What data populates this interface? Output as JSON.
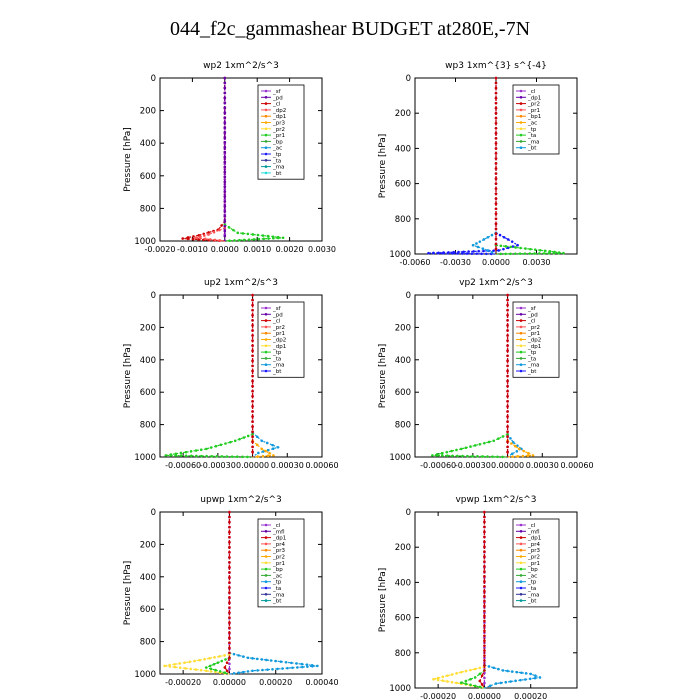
{
  "page": {
    "title": "044_f2c_gammashear  BUDGET at280E,-7N"
  },
  "chart_data": [
    {
      "type": "line",
      "title": "wp2   1xm^2/s^3",
      "ylabel": "Pressure  [hPa]",
      "xlim": [
        -0.002,
        0.003
      ],
      "ylim": [
        1000,
        0
      ],
      "xticks": [
        -0.002,
        -0.001,
        0.0,
        0.001,
        0.002,
        0.003
      ],
      "xtick_labels": [
        "-0.0020",
        "-0.0010",
        "0.0000",
        "0.0010",
        "0.0020",
        "0.0030"
      ],
      "yticks": [
        0,
        200,
        400,
        600,
        800,
        1000
      ],
      "legend": [
        "_sf",
        "_pd",
        "_cl",
        "_dp2",
        "_dp1",
        "_pr3",
        "_pr2",
        "_pr1",
        "_bp",
        "_ac",
        "_tp",
        "_ta",
        "_ma",
        "_bt"
      ],
      "series": [
        {
          "name": "_cl",
          "color": "#9933cc",
          "points": [
            [
              0.0,
              0
            ],
            [
              0.0,
              900
            ],
            [
              0.0,
              960
            ],
            [
              0.0,
              1000
            ]
          ]
        },
        {
          "name": "_pr1",
          "color": "#22cc22",
          "points": [
            [
              0.0,
              900
            ],
            [
              0.0004,
              950
            ],
            [
              0.0018,
              980
            ],
            [
              0.0,
              1000
            ]
          ]
        },
        {
          "name": "_dp1",
          "color": "#cc0000",
          "points": [
            [
              0.0,
              0
            ],
            [
              0.0,
              880
            ],
            [
              -0.0002,
              930
            ],
            [
              -0.0008,
              965
            ],
            [
              -0.0013,
              985
            ],
            [
              0.0,
              1000
            ]
          ]
        },
        {
          "name": "_pr3",
          "color": "#ff5555",
          "points": [
            [
              0.0,
              920
            ],
            [
              -0.0005,
              960
            ],
            [
              -0.0009,
              980
            ],
            [
              0.0,
              1000
            ]
          ]
        },
        {
          "name": "_pd",
          "color": "#6600aa",
          "points": [
            [
              0.0,
              0
            ],
            [
              0.0,
              1000
            ]
          ]
        }
      ]
    },
    {
      "type": "line",
      "title": "wp3   1xm^{3} s^{-4}",
      "ylabel": "Pressure  [hPa]",
      "xlim": [
        -0.006,
        0.006
      ],
      "ylim": [
        1000,
        0
      ],
      "xticks": [
        -0.006,
        -0.003,
        0.0,
        0.003
      ],
      "xtick_labels": [
        "-0.0060",
        "-0.0030",
        "0.0000",
        "0.0030"
      ],
      "yticks": [
        0,
        200,
        400,
        600,
        800,
        1000
      ],
      "legend": [
        "_cl",
        "_dp1",
        "_pr2",
        "_pr1",
        "_bp1",
        "_ac",
        "_tp",
        "_ta",
        "_ma",
        "_bt"
      ],
      "series": [
        {
          "name": "_cl",
          "color": "#9933cc",
          "points": [
            [
              0.0,
              0
            ],
            [
              0.0,
              1000
            ]
          ]
        },
        {
          "name": "_ta",
          "color": "#1a1aff",
          "points": [
            [
              0.0,
              880
            ],
            [
              0.0012,
              930
            ],
            [
              0.0016,
              950
            ],
            [
              0.0002,
              980
            ],
            [
              -0.005,
              995
            ],
            [
              0.0,
              1000
            ]
          ]
        },
        {
          "name": "_tp",
          "color": "#1199dd",
          "points": [
            [
              0.0,
              880
            ],
            [
              -0.0012,
              930
            ],
            [
              -0.0017,
              950
            ],
            [
              -0.0006,
              980
            ],
            [
              0.0,
              1000
            ]
          ]
        },
        {
          "name": "_ac",
          "color": "#22cc22",
          "points": [
            [
              0.0,
              950
            ],
            [
              0.004,
              985
            ],
            [
              0.005,
              995
            ],
            [
              0.0,
              1000
            ]
          ]
        },
        {
          "name": "_dp1",
          "color": "#cc0000",
          "points": [
            [
              0.0,
              0
            ],
            [
              0.0,
              1000
            ]
          ]
        }
      ]
    },
    {
      "type": "line",
      "title": "up2   1xm^2/s^3",
      "ylabel": "Pressure  [hPa]",
      "xlim": [
        -0.0008,
        0.0006
      ],
      "ylim": [
        1000,
        0
      ],
      "xticks": [
        -0.0006,
        -0.0003,
        0.0,
        0.0003,
        0.0006
      ],
      "xtick_labels": [
        "-0.00060",
        "-0.00030",
        "0.00000",
        "0.00030",
        "0.00060"
      ],
      "yticks": [
        0,
        200,
        400,
        600,
        800,
        1000
      ],
      "legend": [
        "_sf",
        "_pd",
        "_cl",
        "_pr2",
        "_pr1",
        "_dp2",
        "_dp1",
        "_tp",
        "_ta",
        "_ma",
        "_bt"
      ],
      "series": [
        {
          "name": "_cl",
          "color": "#9933cc",
          "points": [
            [
              0.0,
              0
            ],
            [
              0.0,
              1000
            ]
          ]
        },
        {
          "name": "_dp1",
          "color": "#1199dd",
          "points": [
            [
              0.0,
              850
            ],
            [
              8e-05,
              900
            ],
            [
              0.00022,
              940
            ],
            [
              5e-05,
              975
            ],
            [
              0.0,
              1000
            ]
          ]
        },
        {
          "name": "_pr1",
          "color": "#22cc22",
          "points": [
            [
              0.0,
              860
            ],
            [
              -0.00015,
              900
            ],
            [
              -0.0004,
              950
            ],
            [
              -0.00075,
              990
            ],
            [
              0.0,
              1000
            ]
          ]
        },
        {
          "name": "_pr2",
          "color": "#ffaa00",
          "points": [
            [
              0.0,
              900
            ],
            [
              8e-05,
              950
            ],
            [
              0.00018,
              990
            ],
            [
              0.0,
              1000
            ]
          ]
        },
        {
          "name": "_pd",
          "color": "#cc0000",
          "points": [
            [
              0.0,
              0
            ],
            [
              0.0,
              1000
            ]
          ]
        }
      ]
    },
    {
      "type": "line",
      "title": "vp2   1xm^2/s^3",
      "ylabel": "Pressure  [hPa]",
      "xlim": [
        -0.0008,
        0.0006
      ],
      "ylim": [
        1000,
        0
      ],
      "xticks": [
        -0.0006,
        -0.0003,
        0.0,
        0.0003,
        0.0006
      ],
      "xtick_labels": [
        "-0.00060",
        "-0.00030",
        "0.00000",
        "0.00030",
        "0.00060"
      ],
      "yticks": [
        0,
        200,
        400,
        600,
        800,
        1000
      ],
      "legend": [
        "_sf",
        "_pd",
        "_cl",
        "_pr2",
        "_pr1",
        "_dp2",
        "_dp1",
        "_tp",
        "_ta",
        "_ma",
        "_bt"
      ],
      "series": [
        {
          "name": "_cl",
          "color": "#9933cc",
          "points": [
            [
              0.0,
              0
            ],
            [
              0.0,
              1000
            ]
          ]
        },
        {
          "name": "_dp1",
          "color": "#1199dd",
          "points": [
            [
              0.0,
              860
            ],
            [
              5e-05,
              910
            ],
            [
              0.00012,
              950
            ],
            [
              4e-05,
              980
            ],
            [
              0.0,
              1000
            ]
          ]
        },
        {
          "name": "_pr1",
          "color": "#22cc22",
          "points": [
            [
              0.0,
              860
            ],
            [
              -0.00012,
              900
            ],
            [
              -0.0004,
              950
            ],
            [
              -0.00065,
              990
            ],
            [
              0.0,
              1000
            ]
          ]
        },
        {
          "name": "_pr2",
          "color": "#ffaa00",
          "points": [
            [
              0.0,
              900
            ],
            [
              0.0001,
              950
            ],
            [
              0.00022,
              990
            ],
            [
              0.0,
              1000
            ]
          ]
        },
        {
          "name": "_pd",
          "color": "#cc0000",
          "points": [
            [
              0.0,
              0
            ],
            [
              0.0,
              1000
            ]
          ]
        }
      ]
    },
    {
      "type": "line",
      "title": "upwp   1xm^2/s^3",
      "ylabel": "Pressure  [hPa]",
      "xlim": [
        -0.0003,
        0.0004
      ],
      "ylim": [
        1000,
        0
      ],
      "xticks": [
        -0.0002,
        0.0,
        0.0002,
        0.0004
      ],
      "xtick_labels": [
        "-0.00020",
        "0.00000",
        "0.00020",
        "0.00040"
      ],
      "yticks": [
        0,
        200,
        400,
        600,
        800,
        1000
      ],
      "legend": [
        "_cl",
        "_mfl",
        "_dp1",
        "_pr4",
        "_pr3",
        "_pr2",
        "_pr1",
        "_bp",
        "_ac",
        "_tp",
        "_ta",
        "_ma",
        "_bt"
      ],
      "series": [
        {
          "name": "_cl",
          "color": "#9933cc",
          "points": [
            [
              0.0,
              0
            ],
            [
              0.0,
              1000
            ]
          ]
        },
        {
          "name": "_tp",
          "color": "#1199dd",
          "points": [
            [
              0.0,
              870
            ],
            [
              8e-05,
              900
            ],
            [
              0.0002,
              920
            ],
            [
              0.00038,
              950
            ],
            [
              0.0001,
              980
            ],
            [
              0.0,
              1000
            ]
          ]
        },
        {
          "name": "_pr1",
          "color": "#ffdd33",
          "points": [
            [
              0.0,
              880
            ],
            [
              -0.00015,
              920
            ],
            [
              -0.00028,
              950
            ],
            [
              -0.0001,
              980
            ],
            [
              0.0,
              1000
            ]
          ]
        },
        {
          "name": "_bp",
          "color": "#22cc22",
          "points": [
            [
              0.0,
              900
            ],
            [
              -5e-05,
              930
            ],
            [
              -0.0001,
              960
            ],
            [
              0.0,
              1000
            ]
          ]
        },
        {
          "name": "_dp1",
          "color": "#cc0000",
          "points": [
            [
              0.0,
              0
            ],
            [
              0.0,
              900
            ],
            [
              -2e-05,
              960
            ],
            [
              0.0,
              1000
            ]
          ]
        }
      ]
    },
    {
      "type": "line",
      "title": "vpwp   1xm^2/s^3",
      "ylabel": "Pressure  [hPa]",
      "xlim": [
        -0.0003,
        0.0004
      ],
      "ylim": [
        1000,
        0
      ],
      "xticks": [
        -0.0002,
        0.0,
        0.0002
      ],
      "xtick_labels": [
        "-0.00020",
        "0.00000",
        "0.00020"
      ],
      "yticks": [
        0,
        200,
        400,
        600,
        800,
        1000
      ],
      "legend": [
        "_cl",
        "_mfl",
        "_dp1",
        "_pr4",
        "_pr3",
        "_pr2",
        "_pr1",
        "_bp",
        "_ac",
        "_tp",
        "_ta",
        "_ma",
        "_bt"
      ],
      "series": [
        {
          "name": "_cl",
          "color": "#9933cc",
          "points": [
            [
              0.0,
              0
            ],
            [
              0.0,
              1000
            ]
          ]
        },
        {
          "name": "_tp",
          "color": "#1199dd",
          "points": [
            [
              0.0,
              870
            ],
            [
              8e-05,
              900
            ],
            [
              0.0002,
              920
            ],
            [
              0.00024,
              940
            ],
            [
              5e-05,
              975
            ],
            [
              0.0,
              1000
            ]
          ]
        },
        {
          "name": "_pr1",
          "color": "#ffdd33",
          "points": [
            [
              0.0,
              880
            ],
            [
              -0.0001,
              910
            ],
            [
              -0.00022,
              950
            ],
            [
              -8e-05,
              980
            ],
            [
              0.0,
              1000
            ]
          ]
        },
        {
          "name": "_bp",
          "color": "#22cc22",
          "points": [
            [
              0.0,
              900
            ],
            [
              -4e-05,
              940
            ],
            [
              -0.0001,
              970
            ],
            [
              0.0,
              1000
            ]
          ]
        },
        {
          "name": "_dp1",
          "color": "#cc0000",
          "points": [
            [
              0.0,
              0
            ],
            [
              0.0,
              900
            ],
            [
              -2e-05,
              960
            ],
            [
              0.0,
              1000
            ]
          ]
        }
      ]
    }
  ]
}
